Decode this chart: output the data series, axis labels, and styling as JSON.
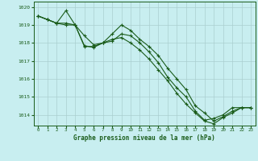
{
  "title": "Graphe pression niveau de la mer (hPa)",
  "background_color": "#c8eef0",
  "grid_color": "#aacfcf",
  "line_color": "#1a5c1a",
  "xlim": [
    -0.5,
    23.5
  ],
  "ylim": [
    1013.4,
    1020.3
  ],
  "xticks": [
    0,
    1,
    2,
    3,
    4,
    5,
    6,
    7,
    8,
    9,
    10,
    11,
    12,
    13,
    14,
    15,
    16,
    17,
    18,
    19,
    20,
    21,
    22,
    23
  ],
  "yticks": [
    1014,
    1015,
    1016,
    1017,
    1018,
    1019,
    1020
  ],
  "series": [
    [
      1019.5,
      1019.3,
      1019.1,
      1019.0,
      1019.0,
      1017.8,
      1017.8,
      1018.0,
      1018.1,
      1018.5,
      1018.4,
      1018.0,
      1017.5,
      1016.9,
      1016.1,
      1015.5,
      1015.0,
      1014.2,
      1013.7,
      1013.8,
      1014.0,
      1014.4,
      1014.4,
      1014.4
    ],
    [
      1019.5,
      1019.3,
      1019.1,
      1019.8,
      1019.0,
      1018.4,
      1017.9,
      1018.0,
      1018.5,
      1019.0,
      1018.7,
      1018.2,
      1017.8,
      1017.3,
      1016.6,
      1016.0,
      1015.4,
      1014.5,
      1014.1,
      1013.65,
      1013.9,
      1014.2,
      1014.4,
      1014.4
    ],
    [
      1019.5,
      1019.3,
      1019.1,
      1019.1,
      1019.0,
      1017.85,
      1017.75,
      1018.0,
      1018.2,
      1018.3,
      1018.0,
      1017.6,
      1017.1,
      1016.5,
      1015.9,
      1015.2,
      1014.6,
      1014.1,
      1013.65,
      1013.5,
      1013.85,
      1014.1,
      1014.4,
      1014.4
    ]
  ]
}
